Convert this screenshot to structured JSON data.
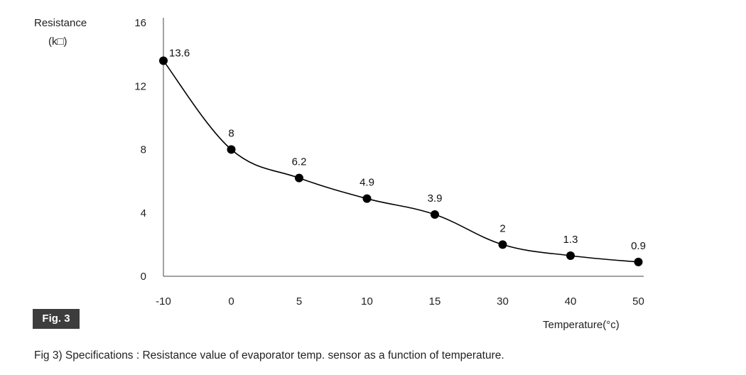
{
  "chart_data": {
    "type": "line",
    "categories": [
      "-10",
      "0",
      "5",
      "10",
      "15",
      "30",
      "40",
      "50"
    ],
    "values": [
      13.6,
      8,
      6.2,
      4.9,
      3.9,
      2,
      1.3,
      0.9
    ],
    "data_labels": [
      "13.6",
      "8",
      "6.2",
      "4.9",
      "3.9",
      "2",
      "1.3",
      "0.9"
    ],
    "y_ticks": [
      "0",
      "4",
      "8",
      "12",
      "16"
    ],
    "ylim": [
      0,
      16
    ],
    "ylabel_line1": "Resistance",
    "ylabel_line2": "(k□)",
    "xlabel": "Temperature(°c)",
    "grid": false,
    "line_color": "#000000",
    "marker_color": "#000000"
  },
  "figure_badge": "Fig. 3",
  "caption": "Fig 3) Specifications : Resistance value of evaporator temp. sensor as a function of temperature."
}
